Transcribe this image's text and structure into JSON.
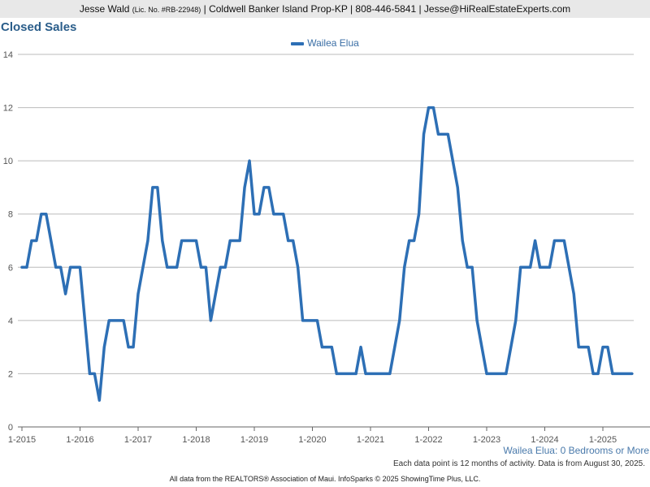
{
  "header": {
    "agent": "Jesse Wald",
    "license": "(Lic. No. #RB-22948)",
    "rest": "| Coldwell Banker Island Prop-KP | 808-446-5841 | Jesse@HiRealEstateExperts.com"
  },
  "colors": {
    "series": "#2d6fb5",
    "title": "#2a5d8a",
    "grid": "#bbbbbb"
  },
  "chart_data": {
    "type": "line",
    "title": "Closed Sales",
    "subtitle": "Wailea Elua: 0 Bedrooms or More",
    "note": "Each data point is 12 months of activity. Data is from August 30, 2025.",
    "footer": "All data from the REALTORS® Association of Maui. InfoSparks © 2025 ShowingTime Plus, LLC.",
    "legend_position": "top-center",
    "grid": true,
    "ylim": [
      0,
      14
    ],
    "y_ticks": [
      0,
      2,
      4,
      6,
      8,
      10,
      12,
      14
    ],
    "x_start": "2015-01",
    "x_ticks": [
      "1-2015",
      "1-2016",
      "1-2017",
      "1-2018",
      "1-2019",
      "1-2020",
      "1-2021",
      "1-2022",
      "1-2023",
      "1-2024",
      "1-2025"
    ],
    "series": [
      {
        "name": "Wailea Elua",
        "frequency": "monthly",
        "values": [
          6,
          6,
          7,
          7,
          8,
          8,
          7,
          6,
          6,
          5,
          6,
          6,
          6,
          4,
          2,
          2,
          1,
          3,
          4,
          4,
          4,
          4,
          3,
          3,
          5,
          6,
          7,
          9,
          9,
          7,
          6,
          6,
          6,
          7,
          7,
          7,
          7,
          6,
          6,
          4,
          5,
          6,
          6,
          7,
          7,
          7,
          9,
          10,
          8,
          8,
          9,
          9,
          8,
          8,
          8,
          7,
          7,
          6,
          4,
          4,
          4,
          4,
          3,
          3,
          3,
          2,
          2,
          2,
          2,
          2,
          3,
          2,
          2,
          2,
          2,
          2,
          2,
          3,
          4,
          6,
          7,
          7,
          8,
          11,
          12,
          12,
          11,
          11,
          11,
          10,
          9,
          7,
          6,
          6,
          4,
          3,
          2,
          2,
          2,
          2,
          2,
          3,
          4,
          6,
          6,
          6,
          7,
          6,
          6,
          6,
          7,
          7,
          7,
          6,
          5,
          3,
          3,
          3,
          2,
          2,
          3,
          3,
          2,
          2,
          2,
          2,
          2
        ]
      }
    ]
  }
}
